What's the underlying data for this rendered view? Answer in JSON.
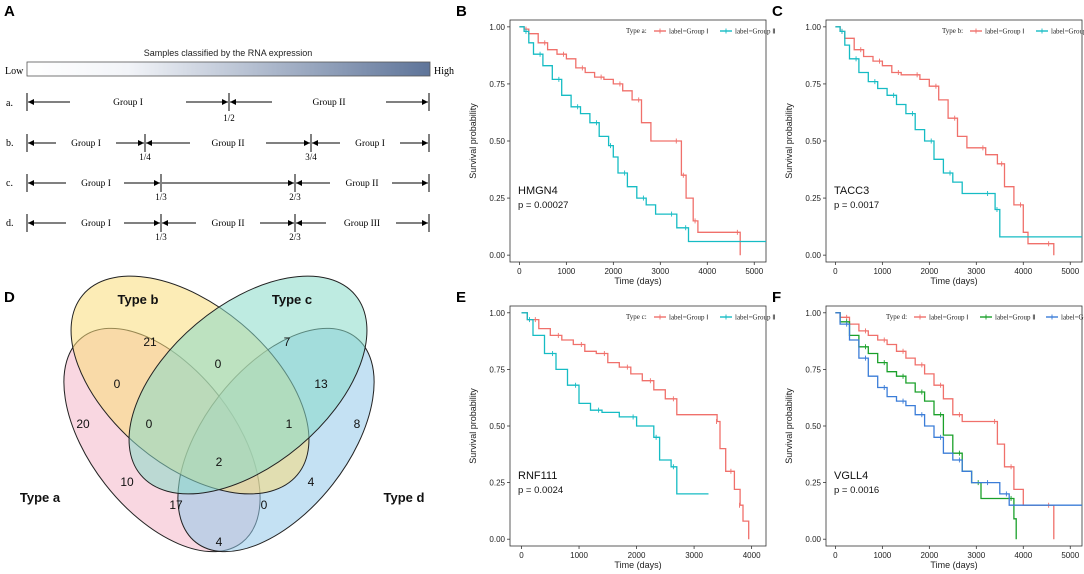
{
  "panels": {
    "a": "A",
    "b": "B",
    "c": "C",
    "d": "D",
    "e": "E",
    "f": "F"
  },
  "schematic": {
    "title": "Samples classified by the RNA expression",
    "low_label": "Low",
    "high_label": "High",
    "rows": [
      {
        "key": "a.",
        "groups": [
          "Group I",
          "Group II"
        ],
        "cuts": [
          "1/2"
        ]
      },
      {
        "key": "b.",
        "groups": [
          "Group I",
          "Group II",
          "Group I"
        ],
        "cuts": [
          "1/4",
          "3/4"
        ]
      },
      {
        "key": "c.",
        "groups": [
          "Group I",
          "Group II"
        ],
        "cuts": [
          "1/3",
          "2/3"
        ]
      },
      {
        "key": "d.",
        "groups": [
          "Group I",
          "Group II",
          "Group III"
        ],
        "cuts": [
          "1/3",
          "2/3"
        ]
      }
    ]
  },
  "venn": {
    "labels": {
      "a": "Type a",
      "b": "Type b",
      "c": "Type c",
      "d": "Type d"
    },
    "colors": {
      "a": "#f4b6c8",
      "b": "#f9dc7a",
      "c": "#88dbc9",
      "d": "#93c9ea"
    },
    "counts": {
      "a_only": "20",
      "b_only": "21",
      "c_only": "7",
      "d_only": "8",
      "ab": "0",
      "bc": "0",
      "cd": "13",
      "abc": "0",
      "bcd": "1",
      "abcd": "2",
      "ac": "10",
      "acd": "17",
      "abd": "0",
      "bd": "4",
      "ad": "4"
    }
  },
  "chart_data": [
    {
      "type": "line",
      "panel": "B",
      "gene": "HMGN4",
      "p_value": "p = 0.00027",
      "legend_title": "Type a:",
      "xlabel": "Time (days)",
      "ylabel": "Survival probability",
      "xlim": [
        -200,
        5250
      ],
      "ylim": [
        -0.03,
        1.03
      ],
      "xticks": [
        "0",
        "1000",
        "2000",
        "3000",
        "4000",
        "5000"
      ],
      "yticks": [
        "0.00",
        "0.25",
        "0.50",
        "0.75",
        "1.00"
      ],
      "series": [
        {
          "name": "label=Group Ⅰ",
          "color": "#f0706b",
          "points": [
            [
              0,
              1
            ],
            [
              100,
              0.99
            ],
            [
              200,
              0.97
            ],
            [
              400,
              0.93
            ],
            [
              600,
              0.9
            ],
            [
              800,
              0.88
            ],
            [
              1000,
              0.86
            ],
            [
              1200,
              0.82
            ],
            [
              1400,
              0.8
            ],
            [
              1600,
              0.78
            ],
            [
              1800,
              0.77
            ],
            [
              2000,
              0.75
            ],
            [
              2200,
              0.72
            ],
            [
              2400,
              0.68
            ],
            [
              2600,
              0.58
            ],
            [
              2800,
              0.5
            ],
            [
              3400,
              0.5
            ],
            [
              3450,
              0.35
            ],
            [
              3550,
              0.25
            ],
            [
              3700,
              0.15
            ],
            [
              3800,
              0.1
            ],
            [
              4700,
              0.1
            ],
            [
              4700,
              0
            ]
          ]
        },
        {
          "name": "label=Group Ⅱ",
          "color": "#16bcc4",
          "points": [
            [
              0,
              1
            ],
            [
              100,
              0.98
            ],
            [
              200,
              0.93
            ],
            [
              300,
              0.88
            ],
            [
              500,
              0.83
            ],
            [
              700,
              0.77
            ],
            [
              900,
              0.7
            ],
            [
              1100,
              0.65
            ],
            [
              1300,
              0.62
            ],
            [
              1500,
              0.58
            ],
            [
              1700,
              0.52
            ],
            [
              1900,
              0.48
            ],
            [
              2000,
              0.43
            ],
            [
              2100,
              0.36
            ],
            [
              2300,
              0.3
            ],
            [
              2500,
              0.25
            ],
            [
              2700,
              0.22
            ],
            [
              2900,
              0.18
            ],
            [
              3300,
              0.18
            ],
            [
              3350,
              0.12
            ],
            [
              3600,
              0.06
            ],
            [
              5250,
              0.06
            ]
          ]
        }
      ]
    },
    {
      "type": "line",
      "panel": "C",
      "gene": "TACC3",
      "p_value": "p = 0.0017",
      "legend_title": "Type b:",
      "xlabel": "Time (days)",
      "ylabel": "Survival probability",
      "xlim": [
        -200,
        5250
      ],
      "ylim": [
        -0.03,
        1.03
      ],
      "xticks": [
        "0",
        "1000",
        "2000",
        "3000",
        "4000",
        "5000"
      ],
      "yticks": [
        "0.00",
        "0.25",
        "0.50",
        "0.75",
        "1.00"
      ],
      "series": [
        {
          "name": "label=Group Ⅰ",
          "color": "#f0706b",
          "points": [
            [
              0,
              1
            ],
            [
              100,
              0.98
            ],
            [
              200,
              0.95
            ],
            [
              400,
              0.9
            ],
            [
              600,
              0.87
            ],
            [
              800,
              0.85
            ],
            [
              1000,
              0.83
            ],
            [
              1200,
              0.8
            ],
            [
              1400,
              0.79
            ],
            [
              1600,
              0.79
            ],
            [
              1800,
              0.77
            ],
            [
              2000,
              0.74
            ],
            [
              2200,
              0.68
            ],
            [
              2400,
              0.6
            ],
            [
              2600,
              0.52
            ],
            [
              2800,
              0.47
            ],
            [
              3200,
              0.44
            ],
            [
              3450,
              0.4
            ],
            [
              3600,
              0.3
            ],
            [
              3800,
              0.22
            ],
            [
              4000,
              0.1
            ],
            [
              4100,
              0.05
            ],
            [
              4600,
              0.05
            ],
            [
              4650,
              0
            ]
          ]
        },
        {
          "name": "label=Group Ⅱ",
          "color": "#16bcc4",
          "points": [
            [
              0,
              1
            ],
            [
              100,
              0.98
            ],
            [
              200,
              0.92
            ],
            [
              300,
              0.86
            ],
            [
              500,
              0.8
            ],
            [
              700,
              0.76
            ],
            [
              900,
              0.73
            ],
            [
              1100,
              0.7
            ],
            [
              1300,
              0.66
            ],
            [
              1500,
              0.62
            ],
            [
              1700,
              0.55
            ],
            [
              1900,
              0.5
            ],
            [
              2100,
              0.42
            ],
            [
              2300,
              0.36
            ],
            [
              2500,
              0.32
            ],
            [
              2700,
              0.27
            ],
            [
              3300,
              0.27
            ],
            [
              3400,
              0.2
            ],
            [
              3500,
              0.08
            ],
            [
              5250,
              0.08
            ]
          ]
        }
      ]
    },
    {
      "type": "line",
      "panel": "E",
      "gene": "RNF111",
      "p_value": "p = 0.0024",
      "legend_title": "Type c:",
      "xlabel": "Time (days)",
      "ylabel": "Survival probability",
      "xlim": [
        -200,
        4250
      ],
      "ylim": [
        -0.03,
        1.03
      ],
      "xticks": [
        "0",
        "1000",
        "2000",
        "3000",
        "4000"
      ],
      "yticks": [
        "0.00",
        "0.25",
        "0.50",
        "0.75",
        "1.00"
      ],
      "series": [
        {
          "name": "label=Group Ⅰ",
          "color": "#f0706b",
          "points": [
            [
              0,
              1
            ],
            [
              100,
              0.97
            ],
            [
              300,
              0.93
            ],
            [
              500,
              0.9
            ],
            [
              700,
              0.88
            ],
            [
              900,
              0.86
            ],
            [
              1100,
              0.83
            ],
            [
              1300,
              0.82
            ],
            [
              1500,
              0.78
            ],
            [
              1700,
              0.76
            ],
            [
              1900,
              0.73
            ],
            [
              2100,
              0.7
            ],
            [
              2300,
              0.66
            ],
            [
              2500,
              0.62
            ],
            [
              2700,
              0.55
            ],
            [
              3400,
              0.52
            ],
            [
              3450,
              0.4
            ],
            [
              3550,
              0.3
            ],
            [
              3700,
              0.22
            ],
            [
              3800,
              0.15
            ],
            [
              3850,
              0.08
            ],
            [
              3950,
              0
            ]
          ]
        },
        {
          "name": "label=Group Ⅱ",
          "color": "#16bcc4",
          "points": [
            [
              0,
              1
            ],
            [
              100,
              0.97
            ],
            [
              200,
              0.9
            ],
            [
              400,
              0.82
            ],
            [
              600,
              0.75
            ],
            [
              800,
              0.68
            ],
            [
              1000,
              0.6
            ],
            [
              1200,
              0.57
            ],
            [
              1400,
              0.56
            ],
            [
              1700,
              0.54
            ],
            [
              2000,
              0.5
            ],
            [
              2300,
              0.45
            ],
            [
              2400,
              0.35
            ],
            [
              2600,
              0.32
            ],
            [
              2700,
              0.2
            ],
            [
              3250,
              0.2
            ]
          ]
        }
      ]
    },
    {
      "type": "line",
      "panel": "F",
      "gene": "VGLL4",
      "p_value": "p = 0.0016",
      "legend_title": "Type d:",
      "xlabel": "Time (days)",
      "ylabel": "Survival probability",
      "xlim": [
        -200,
        5250
      ],
      "ylim": [
        -0.03,
        1.03
      ],
      "xticks": [
        "0",
        "1000",
        "2000",
        "3000",
        "4000",
        "5000"
      ],
      "yticks": [
        "0.00",
        "0.25",
        "0.50",
        "0.75",
        "1.00"
      ],
      "series": [
        {
          "name": "label=Group Ⅰ",
          "color": "#f0706b",
          "points": [
            [
              0,
              1
            ],
            [
              100,
              0.98
            ],
            [
              300,
              0.95
            ],
            [
              500,
              0.92
            ],
            [
              700,
              0.9
            ],
            [
              900,
              0.88
            ],
            [
              1100,
              0.86
            ],
            [
              1300,
              0.83
            ],
            [
              1500,
              0.8
            ],
            [
              1700,
              0.77
            ],
            [
              1900,
              0.73
            ],
            [
              2100,
              0.68
            ],
            [
              2300,
              0.62
            ],
            [
              2500,
              0.55
            ],
            [
              2700,
              0.52
            ],
            [
              3300,
              0.52
            ],
            [
              3450,
              0.42
            ],
            [
              3600,
              0.32
            ],
            [
              3800,
              0.22
            ],
            [
              4000,
              0.15
            ],
            [
              4600,
              0.15
            ],
            [
              4650,
              0
            ]
          ]
        },
        {
          "name": "label=Group Ⅱ",
          "color": "#1aa02a",
          "points": [
            [
              0,
              1
            ],
            [
              100,
              0.96
            ],
            [
              300,
              0.9
            ],
            [
              500,
              0.85
            ],
            [
              700,
              0.82
            ],
            [
              900,
              0.78
            ],
            [
              1100,
              0.74
            ],
            [
              1300,
              0.72
            ],
            [
              1500,
              0.69
            ],
            [
              1700,
              0.65
            ],
            [
              1900,
              0.61
            ],
            [
              2100,
              0.55
            ],
            [
              2300,
              0.46
            ],
            [
              2500,
              0.38
            ],
            [
              2700,
              0.3
            ],
            [
              2900,
              0.25
            ],
            [
              3100,
              0.18
            ],
            [
              3600,
              0.18
            ],
            [
              3800,
              0.09
            ],
            [
              3850,
              0
            ]
          ]
        },
        {
          "name": "label=Group Ⅲ",
          "color": "#3b7dd8",
          "points": [
            [
              0,
              1
            ],
            [
              100,
              0.95
            ],
            [
              300,
              0.88
            ],
            [
              500,
              0.8
            ],
            [
              700,
              0.72
            ],
            [
              900,
              0.67
            ],
            [
              1100,
              0.63
            ],
            [
              1300,
              0.61
            ],
            [
              1500,
              0.59
            ],
            [
              1700,
              0.55
            ],
            [
              1900,
              0.5
            ],
            [
              2100,
              0.45
            ],
            [
              2300,
              0.38
            ],
            [
              2500,
              0.35
            ],
            [
              2700,
              0.3
            ],
            [
              2900,
              0.25
            ],
            [
              3300,
              0.25
            ],
            [
              3500,
              0.2
            ],
            [
              3700,
              0.15
            ],
            [
              5250,
              0.15
            ]
          ]
        }
      ]
    }
  ]
}
